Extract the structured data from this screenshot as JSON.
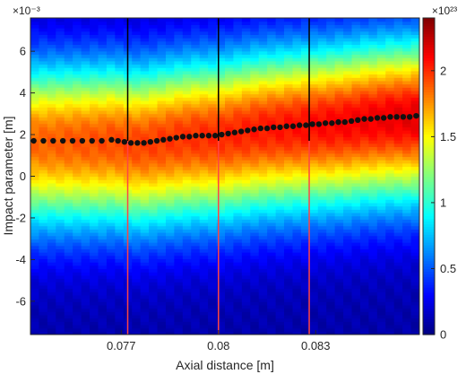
{
  "chart_data": {
    "type": "heatmap",
    "title": "",
    "xlabel": "Axial distance [m]",
    "ylabel": "Impact parameter [m]",
    "xlim": [
      0.0742,
      0.0862
    ],
    "ylim": [
      -7.6,
      7.6
    ],
    "x_ticks": [
      0.077,
      0.08,
      0.083
    ],
    "x_tick_labels": [
      "0.077",
      "0.08",
      "0.083"
    ],
    "y_ticks": [
      -6,
      -4,
      -2,
      0,
      2,
      4,
      6
    ],
    "y_tick_labels": [
      "-6",
      "-4",
      "-2",
      "0",
      "2",
      "4",
      "6"
    ],
    "y_exponent_label": "×10⁻³",
    "colormap": "jet",
    "colorbar": {
      "range": [
        0,
        2.4
      ],
      "ticks": [
        0,
        0.5,
        1,
        1.5,
        2
      ],
      "tick_labels": [
        "0",
        "0.5",
        "1",
        "1.5",
        "2"
      ],
      "exponent_label": "×10²³"
    },
    "vertical_markers": {
      "x": [
        0.0772,
        0.08,
        0.0828
      ],
      "upper_color": "#000000",
      "lower_color": "#ff4444",
      "split_y": 1.7
    },
    "series": [
      {
        "type": "scatter",
        "x": [
          0.0743,
          0.0746,
          0.0749,
          0.0752,
          0.0755,
          0.0758,
          0.0761,
          0.0764,
          0.0767,
          0.0769,
          0.0771,
          0.0773,
          0.0775,
          0.0777,
          0.0779,
          0.0781,
          0.0783,
          0.0785,
          0.0787,
          0.0789,
          0.0791,
          0.0793,
          0.0795,
          0.0797,
          0.0799,
          0.0801,
          0.0803,
          0.0805,
          0.0807,
          0.0809,
          0.0811,
          0.0813,
          0.0815,
          0.0817,
          0.0819,
          0.0821,
          0.0823,
          0.0825,
          0.0827,
          0.0829,
          0.0831,
          0.0833,
          0.0835,
          0.0837,
          0.0839,
          0.0841,
          0.0843,
          0.0845,
          0.0847,
          0.0849,
          0.0851,
          0.0853,
          0.0855,
          0.0857,
          0.0859,
          0.0861
        ],
        "y": [
          1.7,
          1.7,
          1.7,
          1.7,
          1.7,
          1.7,
          1.7,
          1.7,
          1.75,
          1.7,
          1.65,
          1.6,
          1.6,
          1.6,
          1.65,
          1.7,
          1.75,
          1.8,
          1.85,
          1.9,
          1.9,
          1.95,
          1.95,
          1.95,
          1.95,
          2.0,
          2.05,
          2.1,
          2.15,
          2.2,
          2.25,
          2.3,
          2.3,
          2.35,
          2.35,
          2.4,
          2.4,
          2.45,
          2.45,
          2.5,
          2.5,
          2.55,
          2.55,
          2.6,
          2.6,
          2.65,
          2.7,
          2.75,
          2.75,
          2.8,
          2.8,
          2.85,
          2.85,
          2.85,
          2.85,
          2.9
        ]
      }
    ],
    "grid": false
  },
  "colors": {
    "marker_dot": "#111111",
    "axis": "#262626"
  }
}
